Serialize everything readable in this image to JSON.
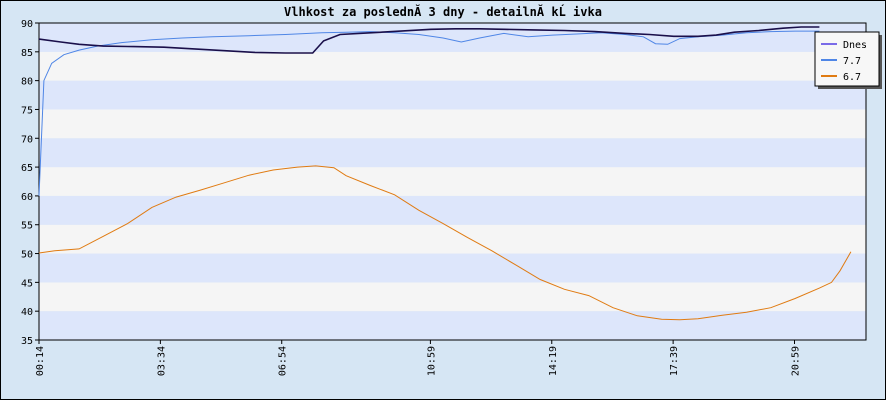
{
  "chart_data": {
    "type": "line",
    "title": "Vlhkost za poslednĂ­ 3 dny - detailnĂ­ kĹ ivka",
    "xlabel": "",
    "ylabel": "",
    "ylim": [
      35,
      90
    ],
    "yticks": [
      35,
      40,
      45,
      50,
      55,
      60,
      65,
      70,
      75,
      80,
      85,
      90
    ],
    "xlim": [
      14,
      1334
    ],
    "xticks": [
      {
        "value": 14,
        "label": "00:14"
      },
      {
        "value": 214,
        "label": "03:34"
      },
      {
        "value": 414,
        "label": "06:54"
      },
      {
        "value": 659,
        "label": "10:59"
      },
      {
        "value": 859,
        "label": "14:19"
      },
      {
        "value": 1059,
        "label": "17:39"
      },
      {
        "value": 1259,
        "label": "20:59"
      }
    ],
    "grid": "horizontal alternating bands",
    "legend_position": "top-right",
    "series": [
      {
        "name": "Dnes",
        "color": "#1a0f4a",
        "points": [
          [
            14,
            87.2
          ],
          [
            50,
            86.7
          ],
          [
            80,
            86.3
          ],
          [
            120,
            86.0
          ],
          [
            170,
            85.9
          ],
          [
            220,
            85.8
          ],
          [
            270,
            85.5
          ],
          [
            320,
            85.2
          ],
          [
            370,
            84.9
          ],
          [
            420,
            84.8
          ],
          [
            465,
            84.8
          ],
          [
            483,
            86.9
          ],
          [
            510,
            88.0
          ],
          [
            560,
            88.3
          ],
          [
            610,
            88.6
          ],
          [
            660,
            88.9
          ],
          [
            700,
            89.0
          ],
          [
            740,
            89.0
          ],
          [
            780,
            88.9
          ],
          [
            830,
            88.8
          ],
          [
            880,
            88.7
          ],
          [
            930,
            88.5
          ],
          [
            980,
            88.2
          ],
          [
            1020,
            88.0
          ],
          [
            1060,
            87.7
          ],
          [
            1100,
            87.7
          ],
          [
            1130,
            87.9
          ],
          [
            1160,
            88.4
          ],
          [
            1200,
            88.7
          ],
          [
            1240,
            89.1
          ],
          [
            1270,
            89.3
          ],
          [
            1300,
            89.3
          ]
        ]
      },
      {
        "name": "7.7",
        "color": "#4f86e6",
        "points": [
          [
            14,
            60.0
          ],
          [
            22,
            80.0
          ],
          [
            35,
            83.0
          ],
          [
            55,
            84.5
          ],
          [
            80,
            85.3
          ],
          [
            110,
            86.0
          ],
          [
            150,
            86.6
          ],
          [
            200,
            87.1
          ],
          [
            250,
            87.4
          ],
          [
            300,
            87.6
          ],
          [
            360,
            87.8
          ],
          [
            420,
            88.0
          ],
          [
            480,
            88.3
          ],
          [
            520,
            88.4
          ],
          [
            560,
            88.5
          ],
          [
            600,
            88.3
          ],
          [
            640,
            88.0
          ],
          [
            680,
            87.4
          ],
          [
            710,
            86.7
          ],
          [
            740,
            87.4
          ],
          [
            780,
            88.2
          ],
          [
            820,
            87.6
          ],
          [
            860,
            87.9
          ],
          [
            900,
            88.1
          ],
          [
            940,
            88.3
          ],
          [
            980,
            88.0
          ],
          [
            1010,
            87.6
          ],
          [
            1030,
            86.4
          ],
          [
            1050,
            86.3
          ],
          [
            1070,
            87.3
          ],
          [
            1100,
            87.6
          ],
          [
            1140,
            87.9
          ],
          [
            1180,
            88.3
          ],
          [
            1220,
            88.5
          ],
          [
            1260,
            88.6
          ],
          [
            1300,
            88.6
          ]
        ]
      },
      {
        "name": "6.7",
        "color": "#e07b12",
        "points": [
          [
            14,
            50.1
          ],
          [
            40,
            50.5
          ],
          [
            80,
            50.8
          ],
          [
            120,
            53.0
          ],
          [
            160,
            55.2
          ],
          [
            200,
            58.0
          ],
          [
            240,
            59.8
          ],
          [
            280,
            61.0
          ],
          [
            320,
            62.3
          ],
          [
            360,
            63.6
          ],
          [
            400,
            64.5
          ],
          [
            440,
            65.0
          ],
          [
            470,
            65.2
          ],
          [
            500,
            64.9
          ],
          [
            520,
            63.5
          ],
          [
            560,
            61.8
          ],
          [
            600,
            60.2
          ],
          [
            640,
            57.5
          ],
          [
            680,
            55.2
          ],
          [
            720,
            52.8
          ],
          [
            760,
            50.5
          ],
          [
            800,
            48.0
          ],
          [
            840,
            45.5
          ],
          [
            880,
            43.8
          ],
          [
            920,
            42.7
          ],
          [
            960,
            40.6
          ],
          [
            1000,
            39.2
          ],
          [
            1040,
            38.6
          ],
          [
            1070,
            38.5
          ],
          [
            1100,
            38.7
          ],
          [
            1140,
            39.3
          ],
          [
            1180,
            39.8
          ],
          [
            1220,
            40.6
          ],
          [
            1260,
            42.2
          ],
          [
            1300,
            44.0
          ],
          [
            1320,
            45.0
          ],
          [
            1334,
            47.0
          ],
          [
            1352,
            50.3
          ]
        ]
      }
    ]
  }
}
